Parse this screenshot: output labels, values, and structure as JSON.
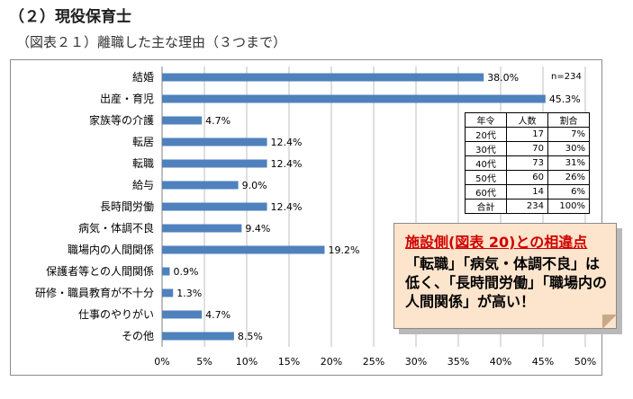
{
  "header": {
    "heading": "（２）現役保育士",
    "subtitle": "（図表２１）離職した主な理由（３つまで）"
  },
  "chart_data": {
    "type": "bar",
    "orientation": "horizontal",
    "categories": [
      "結婚",
      "出産・育児",
      "家族等の介護",
      "転居",
      "転職",
      "給与",
      "長時間労働",
      "病気・体調不良",
      "職場内の人間関係",
      "保護者等との人間関係",
      "研修・職員教育が不十分",
      "仕事のやりがい",
      "その他"
    ],
    "values": [
      38.0,
      45.3,
      4.7,
      12.4,
      12.4,
      9.0,
      12.4,
      9.4,
      19.2,
      0.9,
      1.3,
      4.7,
      8.5
    ],
    "value_labels": [
      "38.0%",
      "45.3%",
      "4.7%",
      "12.4%",
      "12.4%",
      "9.0%",
      "12.4%",
      "9.4%",
      "19.2%",
      "0.9%",
      "1.3%",
      "4.7%",
      "8.5%"
    ],
    "xlim": [
      0,
      50
    ],
    "ticks": [
      0,
      5,
      10,
      15,
      20,
      25,
      30,
      35,
      40,
      45,
      50
    ],
    "tick_labels": [
      "0%",
      "5%",
      "10%",
      "15%",
      "20%",
      "25%",
      "30%",
      "35%",
      "40%",
      "45%",
      "50%"
    ],
    "bar_color": "#4f81bd",
    "grid": true,
    "n_label": "n=234"
  },
  "age_table": {
    "headers": [
      "年令",
      "人数",
      "割合"
    ],
    "rows": [
      [
        "20代",
        "17",
        "7%"
      ],
      [
        "30代",
        "70",
        "30%"
      ],
      [
        "40代",
        "73",
        "31%"
      ],
      [
        "50代",
        "60",
        "26%"
      ],
      [
        "60代",
        "14",
        "6%"
      ],
      [
        "合計",
        "234",
        "100%"
      ]
    ]
  },
  "note": {
    "title": "施設側(図表 20)との相違点",
    "body": "「転職」「病気・体調不良」は低く、「長時間労働」「職場内の人間関係」が高い！"
  }
}
